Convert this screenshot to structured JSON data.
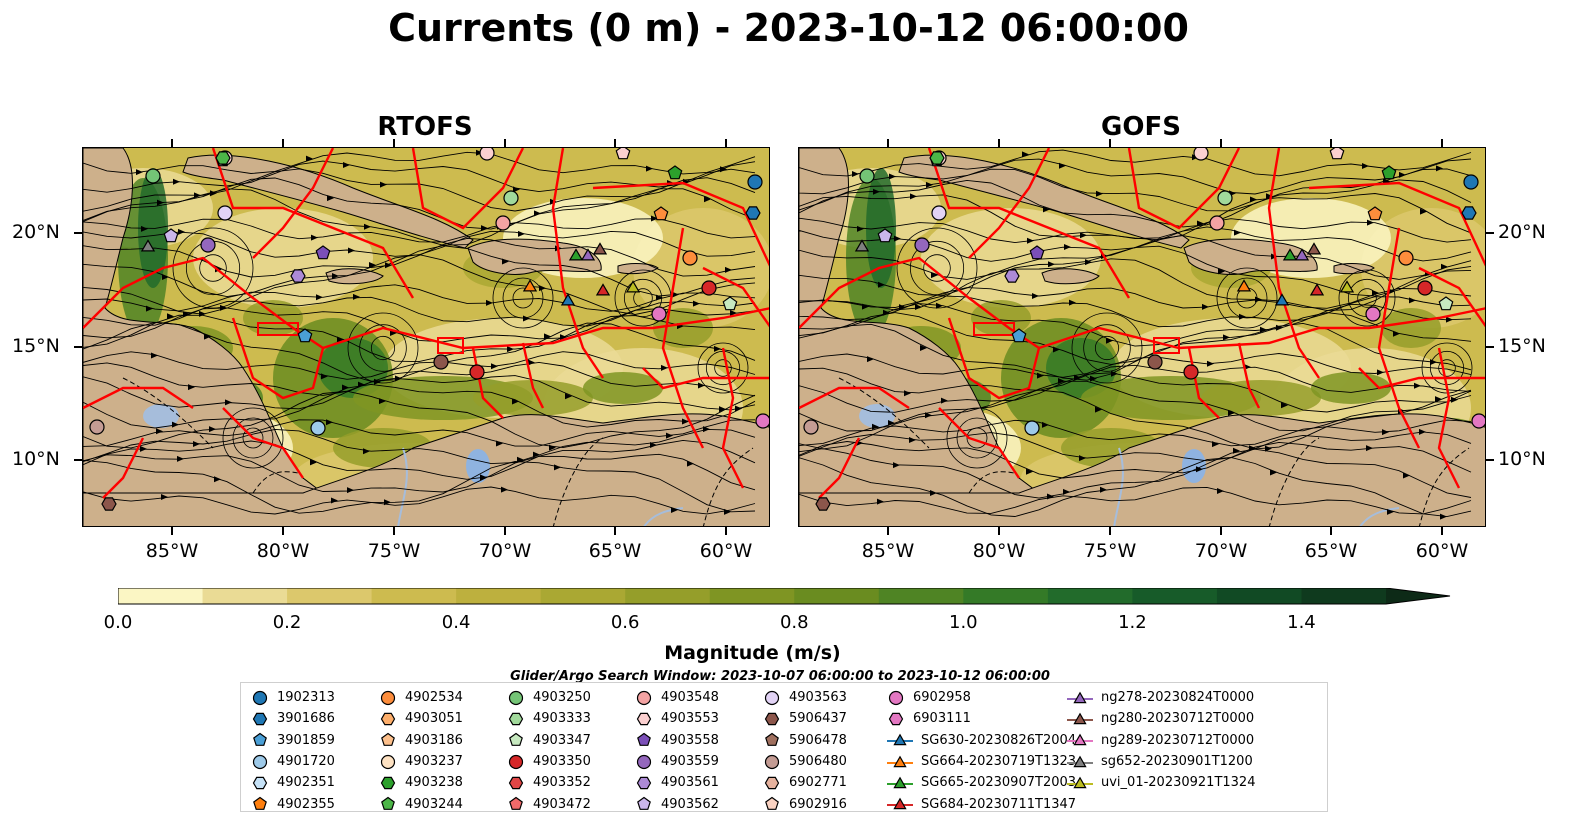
{
  "title": "Currents (0 m) - 2023-10-12 06:00:00",
  "panels": [
    {
      "title": "RTOFS"
    },
    {
      "title": "GOFS"
    }
  ],
  "map_axes": {
    "lon_ticks": [
      "85°W",
      "80°W",
      "75°W",
      "70°W",
      "65°W",
      "60°W"
    ],
    "lat_ticks": [
      "20°N",
      "15°N",
      "10°N"
    ],
    "lon_range": [
      -89,
      -58
    ],
    "lat_range": [
      7,
      24
    ]
  },
  "colorbar": {
    "label": "Magnitude (m/s)",
    "ticks": [
      "0.0",
      "0.2",
      "0.4",
      "0.6",
      "0.8",
      "1.0",
      "1.2",
      "1.4"
    ],
    "range": [
      0.0,
      1.5
    ],
    "extend": "max",
    "colors": [
      "#fbf6c4",
      "#eadb95",
      "#dcc86c",
      "#cdbb4f",
      "#bdb03e",
      "#aaa833",
      "#959e2a",
      "#7f9523",
      "#6a8c20",
      "#4f8424",
      "#347a27",
      "#226b2b",
      "#175b29",
      "#114a24",
      "#0f3a1e",
      "#0d2a17"
    ]
  },
  "colors": {
    "land": "#cdb08b",
    "boundary": "#ff0000",
    "river": "#a6bddb",
    "lake": "#8fb3e0",
    "streamline": "#000000"
  },
  "legend": {
    "title": "Glider/Argo Search Window: 2023-10-07 06:00:00 to 2023-10-12 06:00:00",
    "columns": [
      [
        {
          "label": "1902313",
          "marker": "circle",
          "color": "#1f77b4"
        },
        {
          "label": "3901686",
          "marker": "hexagon",
          "color": "#1f77b4"
        },
        {
          "label": "3901859",
          "marker": "pentagon",
          "color": "#4a9fd6"
        },
        {
          "label": "4901720",
          "marker": "circle",
          "color": "#9ecae9"
        },
        {
          "label": "4902351",
          "marker": "hexagon",
          "color": "#c6e2f7"
        },
        {
          "label": "4902355",
          "marker": "pentagon",
          "color": "#ff7f0e"
        }
      ],
      [
        {
          "label": "4902534",
          "marker": "circle",
          "color": "#fd8d3c"
        },
        {
          "label": "4903051",
          "marker": "hexagon",
          "color": "#fdae6b"
        },
        {
          "label": "4903186",
          "marker": "pentagon",
          "color": "#fdc08c"
        },
        {
          "label": "4903237",
          "marker": "circle",
          "color": "#fee2c3"
        },
        {
          "label": "4903238",
          "marker": "hexagon",
          "color": "#2ca02c"
        },
        {
          "label": "4903244",
          "marker": "pentagon",
          "color": "#4cb648"
        }
      ],
      [
        {
          "label": "4903250",
          "marker": "circle",
          "color": "#74c476"
        },
        {
          "label": "4903333",
          "marker": "hexagon",
          "color": "#a1d99b"
        },
        {
          "label": "4903347",
          "marker": "pentagon",
          "color": "#c7e9c0"
        },
        {
          "label": "4903350",
          "marker": "circle",
          "color": "#d62728"
        },
        {
          "label": "4903352",
          "marker": "hexagon",
          "color": "#e04646"
        },
        {
          "label": "4903472",
          "marker": "pentagon",
          "color": "#f06a6a"
        }
      ],
      [
        {
          "label": "4903548",
          "marker": "circle",
          "color": "#f4a3a3"
        },
        {
          "label": "4903553",
          "marker": "hexagon",
          "color": "#fbd0d0"
        },
        {
          "label": "4903558",
          "marker": "pentagon",
          "color": "#7b4fb8"
        },
        {
          "label": "4903559",
          "marker": "circle",
          "color": "#9467bd"
        },
        {
          "label": "4903561",
          "marker": "hexagon",
          "color": "#ad8ad6"
        },
        {
          "label": "4903562",
          "marker": "pentagon",
          "color": "#cbb6ea"
        }
      ],
      [
        {
          "label": "4903563",
          "marker": "circle",
          "color": "#e2d3f5"
        },
        {
          "label": "5906437",
          "marker": "hexagon",
          "color": "#8c564b"
        },
        {
          "label": "5906478",
          "marker": "pentagon",
          "color": "#a0705f"
        },
        {
          "label": "5906480",
          "marker": "circle",
          "color": "#c49c94"
        },
        {
          "label": "6902771",
          "marker": "hexagon",
          "color": "#e6b29e"
        },
        {
          "label": "6902916",
          "marker": "pentagon",
          "color": "#fad2c2"
        }
      ],
      [
        {
          "label": "6902958",
          "marker": "circle",
          "color": "#e377c2"
        },
        {
          "label": "6903111",
          "marker": "hexagon",
          "color": "#e377c2"
        },
        {
          "label": "SG630-20230826T2004",
          "marker": "triangle-line",
          "color": "#1f77b4"
        },
        {
          "label": "SG664-20230719T1323",
          "marker": "triangle-line",
          "color": "#ff7f0e"
        },
        {
          "label": "SG665-20230907T2003",
          "marker": "triangle-line",
          "color": "#2ca02c"
        },
        {
          "label": "SG684-20230711T1347",
          "marker": "triangle-line",
          "color": "#d62728"
        }
      ],
      [
        {
          "label": "ng278-20230824T0000",
          "marker": "triangle-line",
          "color": "#9467bd"
        },
        {
          "label": "ng280-20230712T0000",
          "marker": "triangle-line",
          "color": "#8c564b"
        },
        {
          "label": "ng289-20230712T0000",
          "marker": "triangle-line",
          "color": "#e377c2"
        },
        {
          "label": "sg652-20230901T1200",
          "marker": "triangle-line",
          "color": "#7f7f7f"
        },
        {
          "label": "uvi_01-20230921T1324",
          "marker": "triangle-line",
          "color": "#bcbd22"
        }
      ]
    ]
  }
}
